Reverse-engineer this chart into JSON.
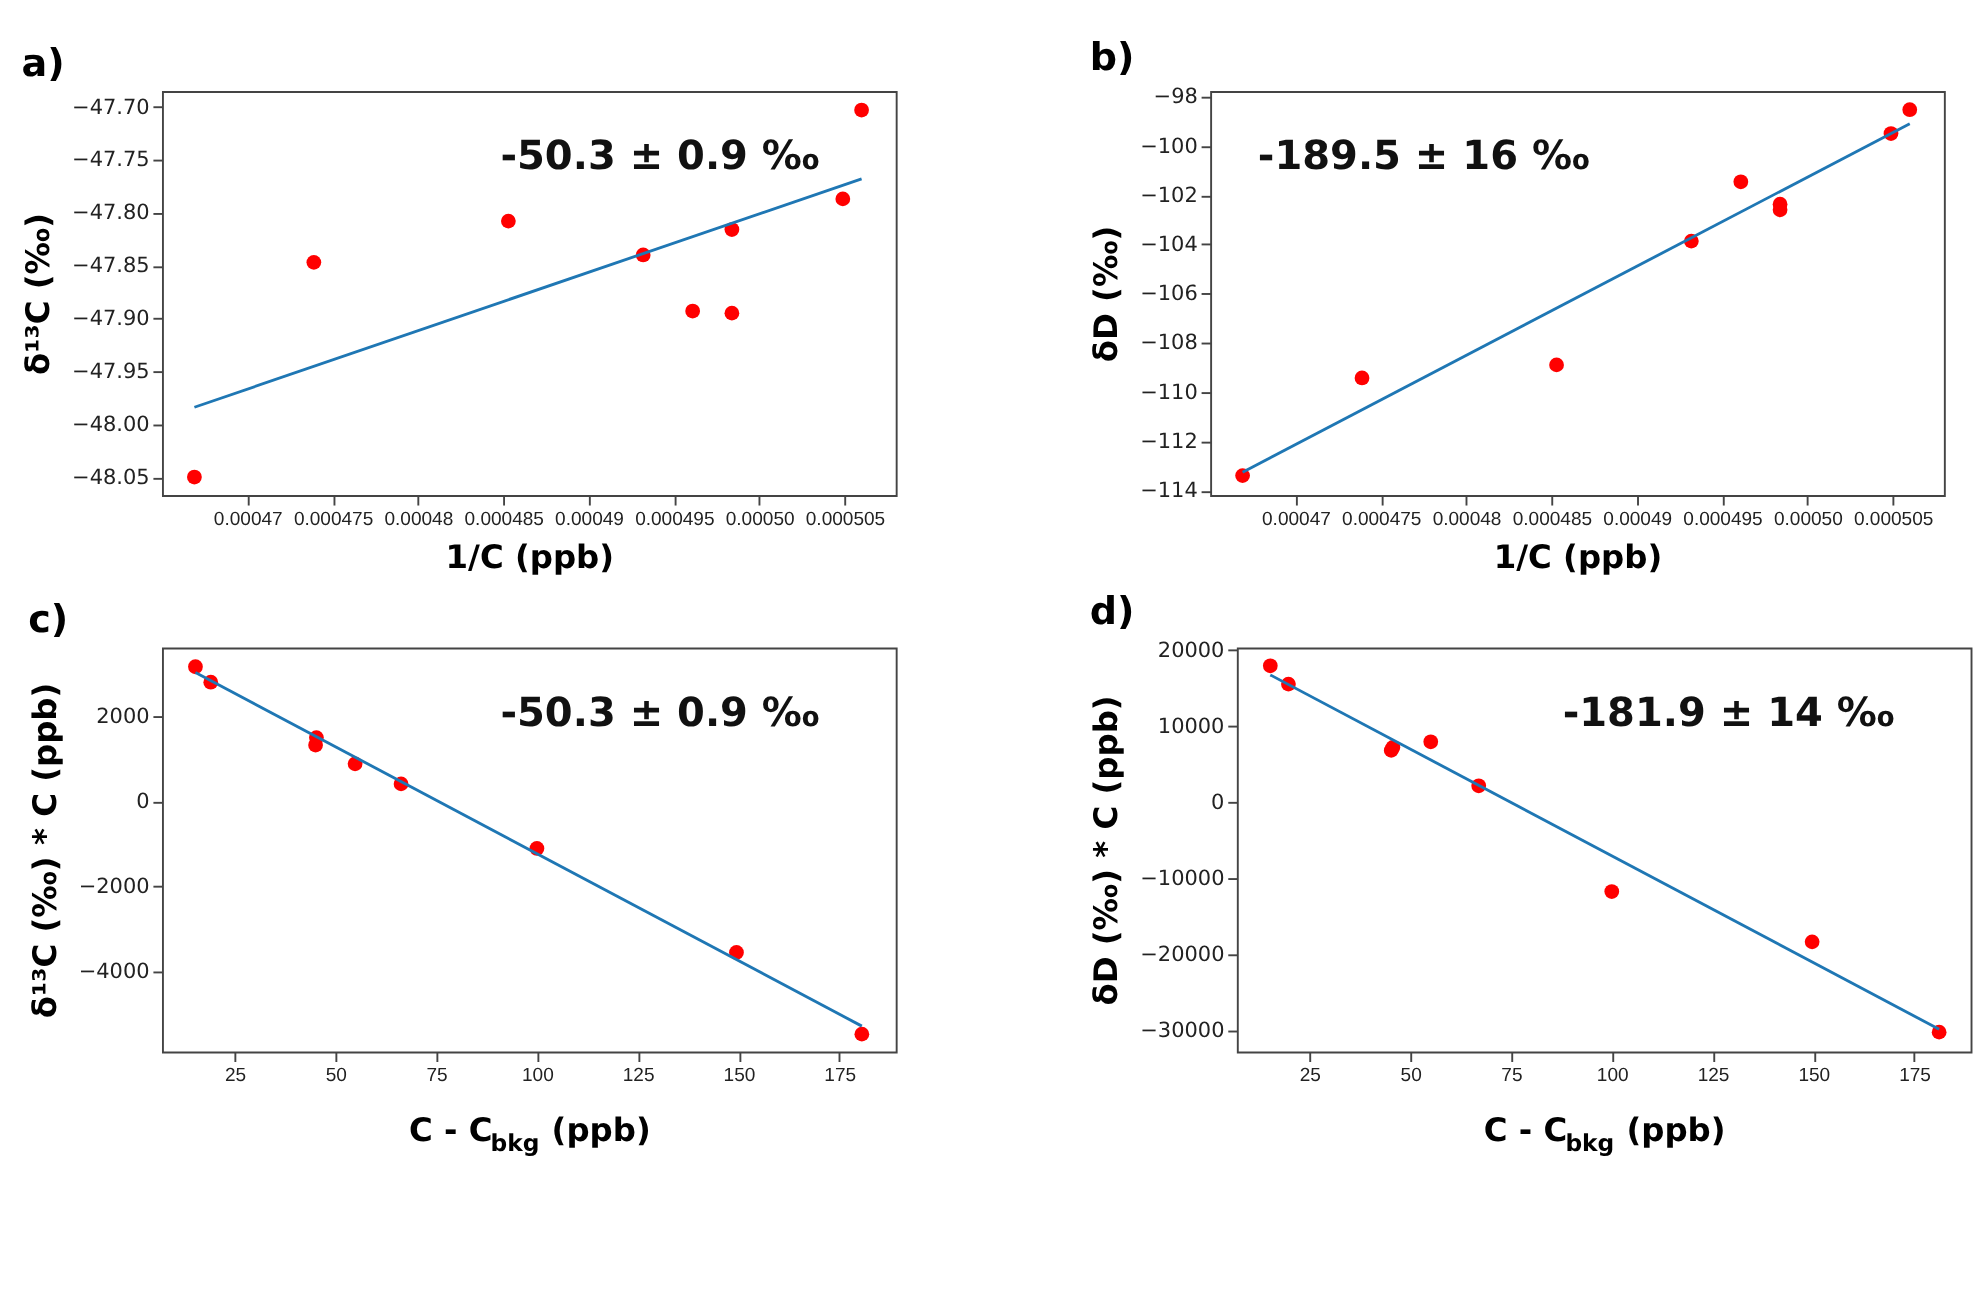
{
  "chart_data": [
    {
      "type": "scatter",
      "title": "a)",
      "xlabel": "1/C (ppb)",
      "ylabel": "δ¹³C  (‰)",
      "annotations": [
        "-50.3 ± 0.9 ‰"
      ],
      "grid": false,
      "marker": "circle",
      "xlim": [
        0.000465,
        0.000508
      ],
      "xticks": [
        0.00047,
        0.000475,
        0.00048,
        0.000485,
        0.00049,
        0.000495,
        {
          "value": 0.0005,
          "label": "0.00050"
        },
        0.000505
      ],
      "ylim": [
        -48.067,
        -47.685
      ],
      "yticks": [
        {
          "value": -47.7,
          "label": "−47.70"
        },
        {
          "value": -47.75,
          "label": "−47.75"
        },
        {
          "value": -47.8,
          "label": "−47.80"
        },
        {
          "value": -47.85,
          "label": "−47.85"
        },
        {
          "value": -47.9,
          "label": "−47.90"
        },
        {
          "value": -47.95,
          "label": "−47.95"
        },
        {
          "value": -48.0,
          "label": "−48.00"
        },
        {
          "value": -48.05,
          "label": "−48.05"
        }
      ],
      "series": [
        {
          "color": "#ff0000",
          "x": [
            0.0004669,
            0.0004739,
            0.0004853,
            0.0004932,
            0.0004961,
            0.0004984,
            0.0004984,
            0.0005049,
            0.000506
          ],
          "values": [
            -48.05,
            -47.847,
            -47.808,
            -47.84,
            -47.893,
            -47.816,
            -47.895,
            -47.787,
            -47.703
          ]
        },
        {
          "type": "line",
          "marker": "none",
          "color": "#1f77b4",
          "x": [
            0.0004669,
            0.000506
          ],
          "values": [
            -47.984,
            -47.768
          ]
        }
      ]
    },
    {
      "type": "scatter",
      "title": "b)",
      "xlabel": "1/C (ppb)",
      "ylabel": "δD (‰)",
      "annotations": [
        "-189.5 ± 16 ‰"
      ],
      "grid": false,
      "marker": "circle",
      "xlim": [
        0.000465,
        0.000508
      ],
      "xticks": [
        0.00047,
        0.000475,
        0.00048,
        0.000485,
        0.00049,
        0.000495,
        {
          "value": 0.0005,
          "label": "0.00050"
        },
        0.000505
      ],
      "ylim": [
        -114.19,
        -97.77
      ],
      "yticks": [
        {
          "value": -98,
          "label": "−98"
        },
        {
          "value": -100,
          "label": "−100"
        },
        {
          "value": -102,
          "label": "−102"
        },
        {
          "value": -104,
          "label": "−104"
        },
        {
          "value": -106,
          "label": "−106"
        },
        {
          "value": -108,
          "label": "−108"
        },
        {
          "value": -110,
          "label": "−110"
        },
        {
          "value": -112,
          "label": "−112"
        },
        {
          "value": -114,
          "label": "−114"
        }
      ],
      "series": [
        {
          "color": "#ff0000",
          "x": [
            0.0004669,
            0.0004739,
            0.0004853,
            0.0004932,
            0.0004961,
            0.0004984,
            0.0004984,
            0.0005049,
            0.000506
          ],
          "values": [
            -113.4,
            -109.43,
            -108.9,
            -103.87,
            -101.46,
            -102.37,
            -102.6,
            -99.5,
            -98.53
          ]
        },
        {
          "type": "line",
          "marker": "none",
          "color": "#1f77b4",
          "x": [
            0.0004669,
            0.000506
          ],
          "values": [
            -113.26,
            -99.1
          ]
        }
      ]
    },
    {
      "type": "scatter",
      "title": "c)",
      "xlabel": "C - C$_{bkg}$ (ppb)",
      "ylabel": "δ¹³C (‰) * C (ppb)",
      "annotations": [
        "-50.3 ± 0.9 ‰"
      ],
      "grid": false,
      "marker": "circle",
      "xlim": [
        7,
        189
      ],
      "xticks": [
        25,
        50,
        75,
        100,
        125,
        150,
        175
      ],
      "ylim": [
        -5883,
        3627
      ],
      "yticks": [
        2000,
        0,
        {
          "value": -2000,
          "label": "−2000"
        },
        {
          "value": -4000,
          "label": "−4000"
        }
      ],
      "series": [
        {
          "color": "#ff0000",
          "x": [
            15.3,
            19.1,
            45.3,
            45.1,
            54.9,
            66.3,
            100,
            149.5,
            180.6
          ],
          "values": [
            3174,
            2811,
            1506,
            1332,
            888,
            417,
            -1103,
            -3551,
            -5474
          ]
        },
        {
          "type": "line",
          "marker": "none",
          "color": "#1f77b4",
          "x": [
            15.3,
            180.6
          ],
          "values": [
            3040,
            -5285
          ]
        }
      ]
    },
    {
      "type": "scatter",
      "title": "d)",
      "xlabel": "C - C$_{bkg}$ (ppb)",
      "ylabel": "δD (‰)  * C (ppb)",
      "annotations": [
        "-181.9 ± 14 ‰"
      ],
      "grid": false,
      "marker": "circle",
      "xlim": [
        7,
        189
      ],
      "xticks": [
        25,
        50,
        75,
        100,
        125,
        150,
        175
      ],
      "ylim": [
        -32780,
        20376
      ],
      "yticks": [
        20000,
        10000,
        0,
        {
          "value": -10000,
          "label": "−10000"
        },
        {
          "value": -20000,
          "label": "−20000"
        },
        {
          "value": -30000,
          "label": "−30000"
        }
      ],
      "series": [
        {
          "color": "#ff0000",
          "x": [
            15.3,
            19.8,
            45.3,
            45.7,
            55.1,
            67,
            100,
            149.7,
            181.2
          ],
          "values": [
            17970,
            15560,
            6840,
            7220,
            7970,
            2180,
            -11730,
            -18350,
            -30230
          ]
        },
        {
          "type": "line",
          "marker": "none",
          "color": "#1f77b4",
          "x": [
            15.3,
            181.2
          ],
          "values": [
            16770,
            -29850
          ]
        }
      ]
    }
  ]
}
